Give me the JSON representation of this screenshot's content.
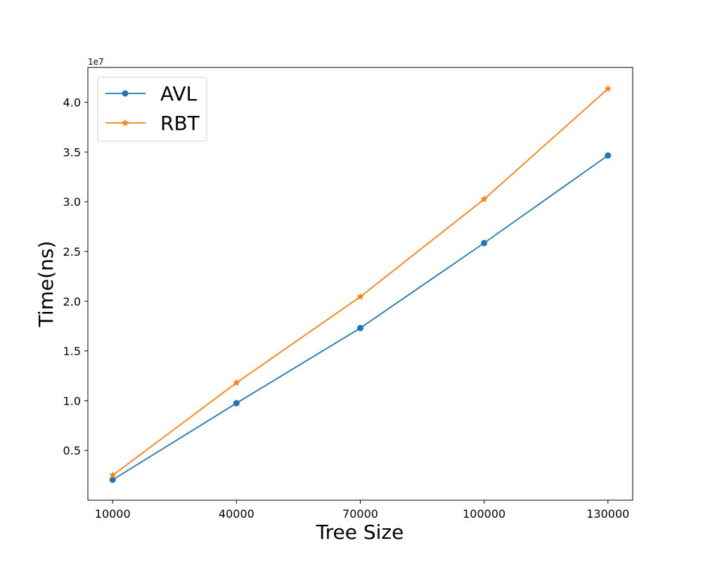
{
  "chart_data": {
    "type": "line",
    "xlabel": "Tree Size",
    "ylabel": "Time(ns)",
    "y_offset_label": "1e7",
    "x": [
      10000,
      40000,
      70000,
      100000,
      130000
    ],
    "x_tick_labels": [
      "10000",
      "40000",
      "70000",
      "100000",
      "130000"
    ],
    "y_ticks": [
      0.5,
      1.0,
      1.5,
      2.0,
      2.5,
      3.0,
      3.5,
      4.0
    ],
    "y_tick_labels": [
      "0.5",
      "1.0",
      "1.5",
      "2.0",
      "2.5",
      "3.0",
      "3.5",
      "4.0"
    ],
    "y_scale_multiplier": 10000000,
    "xlim": [
      4000,
      136000
    ],
    "ylim": [
      0.0,
      4.35
    ],
    "grid": false,
    "legend_position": "upper-left",
    "series": [
      {
        "name": "AVL",
        "color": "#1f77b4",
        "marker": "circle",
        "values": [
          2050000,
          9750000,
          17300000,
          25850000,
          34650000
        ]
      },
      {
        "name": "RBT",
        "color": "#ff7f0e",
        "marker": "star",
        "values": [
          2500000,
          11800000,
          20450000,
          30250000,
          41350000
        ]
      }
    ]
  }
}
